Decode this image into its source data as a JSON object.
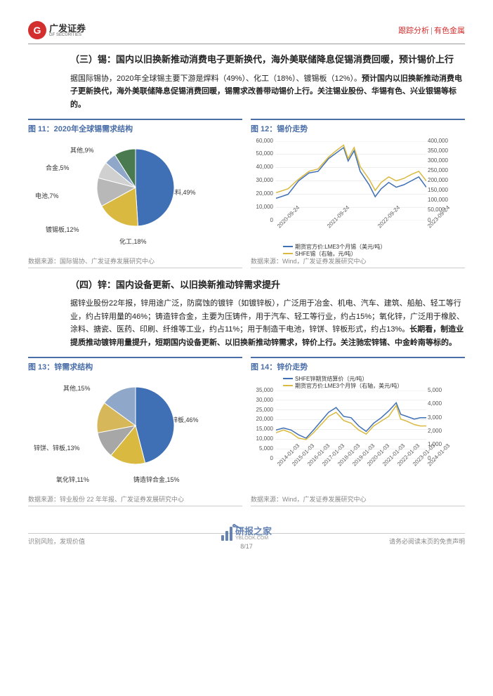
{
  "header": {
    "logo_cn": "广发证券",
    "logo_en": "GF SECURITIES",
    "logo_g": "G",
    "right_a": "跟踪分析",
    "right_b": "有色金属"
  },
  "section3": {
    "title": "（三）锡：国内以旧换新推动消费电子更新换代，海外美联储降息促锡消费回暖，预计锡价上行",
    "para": "据国际锡协，2020年全球锡主要下游是焊料（49%）、化工（18%）、镀锡板（12%）。预计国内以旧换新推动消费电子更新换代，海外美联储降息促锡消费回暖，锡需求改善带动锡价上行。关注锡业股份、华锡有色、兴业银锡等标的。"
  },
  "fig11": {
    "title": "图 11：2020年全球锡需求结构",
    "source": "数据来源：国际锡协、广发证券发展研究中心",
    "pie": {
      "slices": [
        {
          "label": "焊料,49%",
          "value": 49,
          "color": "#3f6fb5"
        },
        {
          "label": "化工,18%",
          "value": 18,
          "color": "#d9b93f"
        },
        {
          "label": "镀锡板,12%",
          "value": 12,
          "color": "#b8b8b8"
        },
        {
          "label": "电池,7%",
          "value": 7,
          "color": "#d0d0d0"
        },
        {
          "label": "合金,5%",
          "value": 5,
          "color": "#8fa8c9"
        },
        {
          "label": "其他,9%",
          "value": 9,
          "color": "#4a7a4f"
        }
      ]
    }
  },
  "fig12": {
    "title": "图 12：锡价走势",
    "source": "数据来源：Wind，广发证券发展研究中心",
    "y1_ticks": [
      "0",
      "10,000",
      "20,000",
      "30,000",
      "40,000",
      "50,000",
      "60,000"
    ],
    "y2_ticks": [
      "0",
      "50,000",
      "100,000",
      "150,000",
      "200,000",
      "250,000",
      "300,000",
      "350,000",
      "400,000"
    ],
    "x_ticks": [
      "2020-09-24",
      "2021-09-24",
      "2022-09-24",
      "2023-09-24"
    ],
    "series": [
      {
        "name": "期货官方价:LME3个月锡（美元/吨）",
        "color": "#3f6fb5",
        "axis": "y1",
        "data": [
          [
            0,
            0.28
          ],
          [
            0.08,
            0.33
          ],
          [
            0.15,
            0.5
          ],
          [
            0.22,
            0.6
          ],
          [
            0.28,
            0.62
          ],
          [
            0.35,
            0.78
          ],
          [
            0.4,
            0.85
          ],
          [
            0.45,
            0.92
          ],
          [
            0.48,
            0.75
          ],
          [
            0.52,
            0.88
          ],
          [
            0.56,
            0.62
          ],
          [
            0.62,
            0.45
          ],
          [
            0.66,
            0.3
          ],
          [
            0.7,
            0.4
          ],
          [
            0.75,
            0.48
          ],
          [
            0.8,
            0.42
          ],
          [
            0.85,
            0.45
          ],
          [
            0.9,
            0.5
          ],
          [
            0.95,
            0.55
          ],
          [
            1.0,
            0.42
          ]
        ]
      },
      {
        "name": "SHFE锡（右轴，元/吨）",
        "color": "#d9b93f",
        "axis": "y2",
        "data": [
          [
            0,
            0.35
          ],
          [
            0.08,
            0.4
          ],
          [
            0.15,
            0.52
          ],
          [
            0.22,
            0.62
          ],
          [
            0.28,
            0.65
          ],
          [
            0.35,
            0.8
          ],
          [
            0.4,
            0.88
          ],
          [
            0.45,
            0.95
          ],
          [
            0.48,
            0.78
          ],
          [
            0.52,
            0.92
          ],
          [
            0.56,
            0.68
          ],
          [
            0.62,
            0.52
          ],
          [
            0.66,
            0.38
          ],
          [
            0.7,
            0.48
          ],
          [
            0.75,
            0.55
          ],
          [
            0.8,
            0.5
          ],
          [
            0.85,
            0.53
          ],
          [
            0.9,
            0.58
          ],
          [
            0.95,
            0.62
          ],
          [
            1.0,
            0.5
          ]
        ]
      }
    ]
  },
  "section4": {
    "title": "（四）锌：国内设备更新、以旧换新推动锌需求提升",
    "para": "据锌业股份22年报，锌用途广泛，防腐蚀的镀锌（如镀锌板），广泛用于冶金、机电、汽车、建筑、船舶、轻工等行业，约占锌用量的46%；铸造锌合金，主要为压铸件，用于汽车、轻工等行业，约占15%；氧化锌，广泛用于橡胶、涂料、搪瓷、医药、印刷、纤维等工业，约占11%；用于制造干电池，锌饼、锌板形式，约占13%。长期看，制造业提质推动镀锌用量提升，短期国内设备更新、以旧换新推动锌需求，锌价上行。关注驰宏锌锗、中金岭南等标的。"
  },
  "fig13": {
    "title": "图 13：锌需求结构",
    "source": "数据来源：锌业股份 22 年年报、广发证券发展研究中心",
    "pie": {
      "slices": [
        {
          "label": "镀锌板,46%",
          "value": 46,
          "color": "#3f6fb5"
        },
        {
          "label": "铸造锌合金,15%",
          "value": 15,
          "color": "#d9b93f"
        },
        {
          "label": "氧化锌,11%",
          "value": 11,
          "color": "#a7a7a7"
        },
        {
          "label": "锌饼、锌板,13%",
          "value": 13,
          "color": "#d6b85a"
        },
        {
          "label": "其他,15%",
          "value": 15,
          "color": "#8fa8c9"
        }
      ]
    }
  },
  "fig14": {
    "title": "图 14：锌价走势",
    "source": "数据来源：Wind，广发证券发展研究中心",
    "y1_ticks": [
      "0",
      "5,000",
      "10,000",
      "15,000",
      "20,000",
      "25,000",
      "30,000",
      "35,000"
    ],
    "y2_ticks": [
      "0",
      "1,000",
      "2,000",
      "3,000",
      "4,000",
      "5,000"
    ],
    "x_ticks": [
      "2014-01-03",
      "2015-01-03",
      "2016-01-03",
      "2017-01-03",
      "2018-01-03",
      "2019-01-03",
      "2020-01-03",
      "2021-01-03",
      "2022-01-03",
      "2023-01-03",
      "2024-01-03"
    ],
    "series": [
      {
        "name": "SHFE锌期货结算价（元/吨）",
        "color": "#3f6fb5",
        "axis": "y1",
        "data": [
          [
            0,
            0.42
          ],
          [
            0.05,
            0.45
          ],
          [
            0.1,
            0.42
          ],
          [
            0.15,
            0.35
          ],
          [
            0.2,
            0.3
          ],
          [
            0.25,
            0.42
          ],
          [
            0.3,
            0.55
          ],
          [
            0.35,
            0.68
          ],
          [
            0.4,
            0.75
          ],
          [
            0.45,
            0.62
          ],
          [
            0.5,
            0.6
          ],
          [
            0.55,
            0.48
          ],
          [
            0.6,
            0.4
          ],
          [
            0.65,
            0.52
          ],
          [
            0.7,
            0.6
          ],
          [
            0.75,
            0.7
          ],
          [
            0.8,
            0.82
          ],
          [
            0.83,
            0.65
          ],
          [
            0.87,
            0.62
          ],
          [
            0.92,
            0.58
          ],
          [
            0.96,
            0.6
          ],
          [
            1.0,
            0.6
          ]
        ]
      },
      {
        "name": "期货官方价:LME3个月锌（右轴，美元/吨）",
        "color": "#d9b93f",
        "axis": "y2",
        "data": [
          [
            0,
            0.38
          ],
          [
            0.05,
            0.42
          ],
          [
            0.1,
            0.38
          ],
          [
            0.15,
            0.3
          ],
          [
            0.2,
            0.28
          ],
          [
            0.25,
            0.38
          ],
          [
            0.3,
            0.5
          ],
          [
            0.35,
            0.62
          ],
          [
            0.4,
            0.68
          ],
          [
            0.45,
            0.56
          ],
          [
            0.5,
            0.52
          ],
          [
            0.55,
            0.42
          ],
          [
            0.6,
            0.36
          ],
          [
            0.65,
            0.48
          ],
          [
            0.7,
            0.55
          ],
          [
            0.75,
            0.62
          ],
          [
            0.8,
            0.78
          ],
          [
            0.83,
            0.58
          ],
          [
            0.87,
            0.55
          ],
          [
            0.92,
            0.5
          ],
          [
            0.96,
            0.48
          ],
          [
            1.0,
            0.48
          ]
        ]
      }
    ]
  },
  "footer": {
    "left": "识别风险，发现价值",
    "right": "请务必阅读末页的免责声明",
    "page": "8/17",
    "wm_cn": "研报之家",
    "wm_en": "YBLOOK.COM"
  }
}
